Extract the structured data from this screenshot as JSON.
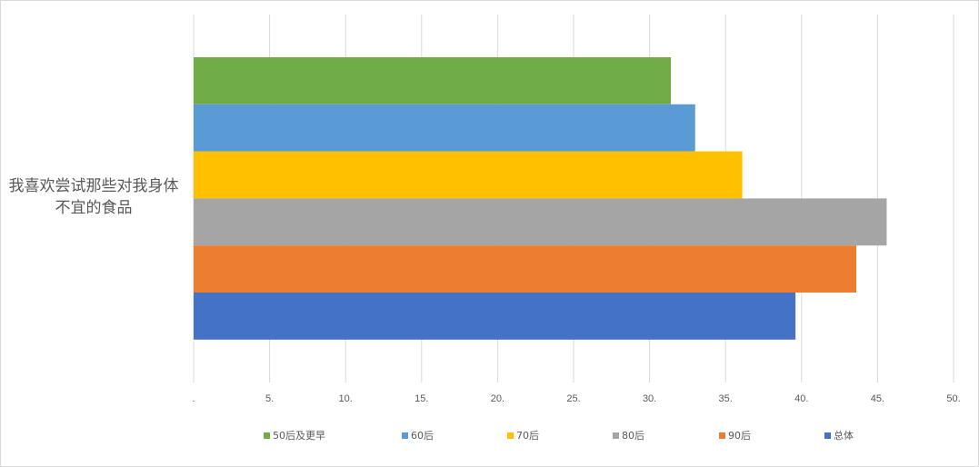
{
  "chart_data": {
    "type": "bar",
    "orientation": "horizontal",
    "categories": [
      "我喜欢尝试那些对我身体不宜的食品"
    ],
    "series": [
      {
        "name": "50后及更早",
        "values": [
          31.4
        ],
        "color": "#70AD47"
      },
      {
        "name": "60后",
        "values": [
          33.0
        ],
        "color": "#5B9BD5"
      },
      {
        "name": "70后",
        "values": [
          36.1
        ],
        "color": "#FFC000"
      },
      {
        "name": "80后",
        "values": [
          45.6
        ],
        "color": "#A5A5A5"
      },
      {
        "name": "90后",
        "values": [
          43.6
        ],
        "color": "#ED7D31"
      },
      {
        "name": "总体",
        "values": [
          39.6
        ],
        "color": "#4472C4"
      }
    ],
    "xlim": [
      0,
      50
    ],
    "xticks": [
      ".",
      "5.",
      "10.",
      "15.",
      "20.",
      "25.",
      "30.",
      "35.",
      "40.",
      "45.",
      "50."
    ],
    "grid": true,
    "legend": "bottom",
    "title": "",
    "xlabel": "",
    "ylabel": ""
  }
}
